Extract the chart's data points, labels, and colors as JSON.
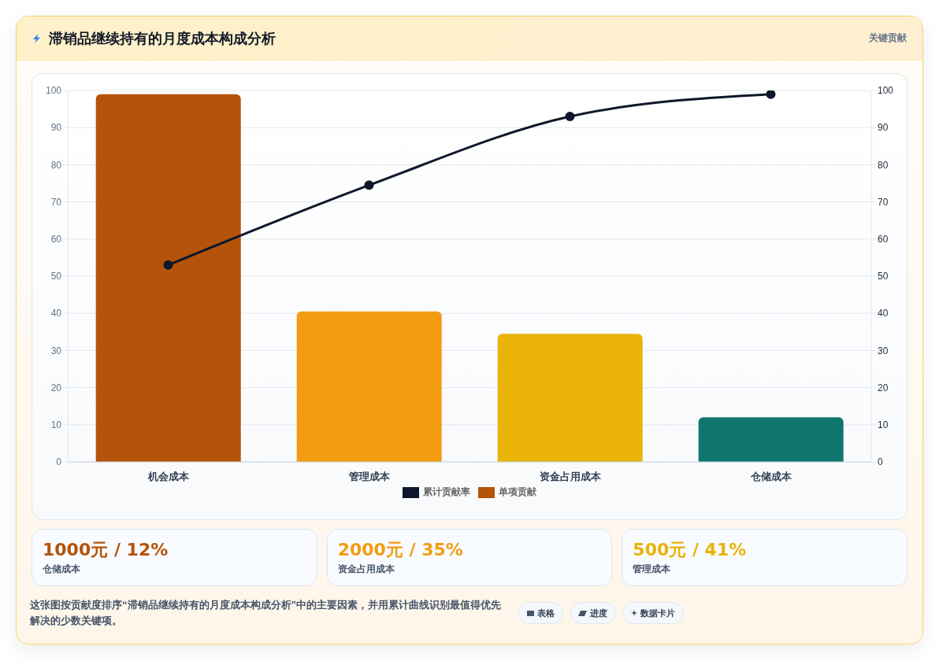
{
  "chart_data": [
    {
      "type": "bar",
      "title": "滞销品继续持有的月度成本构成分析",
      "categories": [
        "机会成本",
        "管理成本",
        "资金占用成本",
        "仓储成本"
      ],
      "series": [
        {
          "name": "累计贡献率",
          "type": "line",
          "axis": "y2",
          "color": "#0f172a",
          "marker": "circle",
          "values": [
            53,
            74.5,
            93,
            99
          ]
        },
        {
          "name": "单项贡献",
          "colors": [
            "#b45309",
            "#f39c12",
            "#eab308",
            "#0f766e"
          ],
          "values": [
            99,
            40.5,
            34.5,
            12
          ]
        }
      ],
      "ylim": [
        0,
        100
      ],
      "yticks": [
        0,
        10,
        20,
        30,
        40,
        50,
        60,
        70,
        80,
        90,
        100
      ],
      "y2lim": [
        0,
        100
      ],
      "y2ticks": [
        0,
        10,
        20,
        30,
        40,
        50,
        60,
        70,
        80,
        90,
        100
      ],
      "grid": "y",
      "legend": "bottom",
      "annotations": [
        "关键贡献"
      ]
    },
    {
      "type": "other",
      "annotations": [
        "1000元 / 12%",
        "仓储成本",
        "2000元 / 35%",
        "资金占用成本",
        "500元 / 41%",
        "管理成本",
        "这张图按贡献度排序“滞销品继续持有的月度成本构成分析”中的主要因素，并用累计曲线识别最值得优先解决的少数关键项。",
        "表格",
        "进度",
        "数据卡片"
      ]
    }
  ]
}
